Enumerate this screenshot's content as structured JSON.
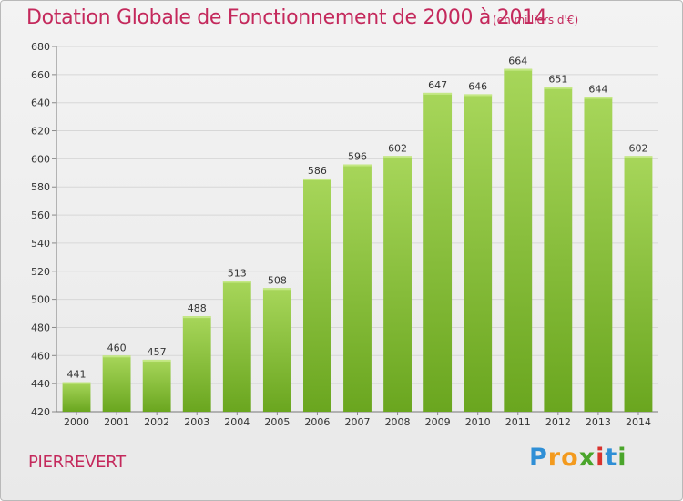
{
  "header": {
    "title": "Dotation Globale de Fonctionnement de 2000 à 2014",
    "subtitle": "(en milliers d'€)"
  },
  "footer": {
    "commune": "PIERREVERT",
    "brand": {
      "letters": [
        "P",
        "r",
        "o",
        "x",
        "i",
        "t",
        "i"
      ],
      "letter_colors": [
        "#2f8fd6",
        "#f39a1e",
        "#f39a1e",
        "#4aa52b",
        "#d9322e",
        "#2f8fd6",
        "#4aa52b"
      ]
    }
  },
  "colors": {
    "accent_text": "#c4295c",
    "bar_light": "#a7d65a",
    "bar_dark": "#6aa61f",
    "grid": "#d7d7d7",
    "axis_text": "#333333"
  },
  "chart_data": {
    "type": "bar",
    "title": "Dotation Globale de Fonctionnement de 2000 à 2014",
    "subtitle": "(en milliers d'€)",
    "categories": [
      "2000",
      "2001",
      "2002",
      "2003",
      "2004",
      "2005",
      "2006",
      "2007",
      "2008",
      "2009",
      "2010",
      "2011",
      "2012",
      "2013",
      "2014"
    ],
    "values": [
      441,
      460,
      457,
      488,
      513,
      508,
      586,
      596,
      602,
      647,
      646,
      664,
      651,
      644,
      602
    ],
    "ylim": [
      420,
      680
    ],
    "yticks": [
      420,
      440,
      460,
      480,
      500,
      520,
      540,
      560,
      580,
      600,
      620,
      640,
      660,
      680
    ],
    "grid": true,
    "data_labels": true
  }
}
